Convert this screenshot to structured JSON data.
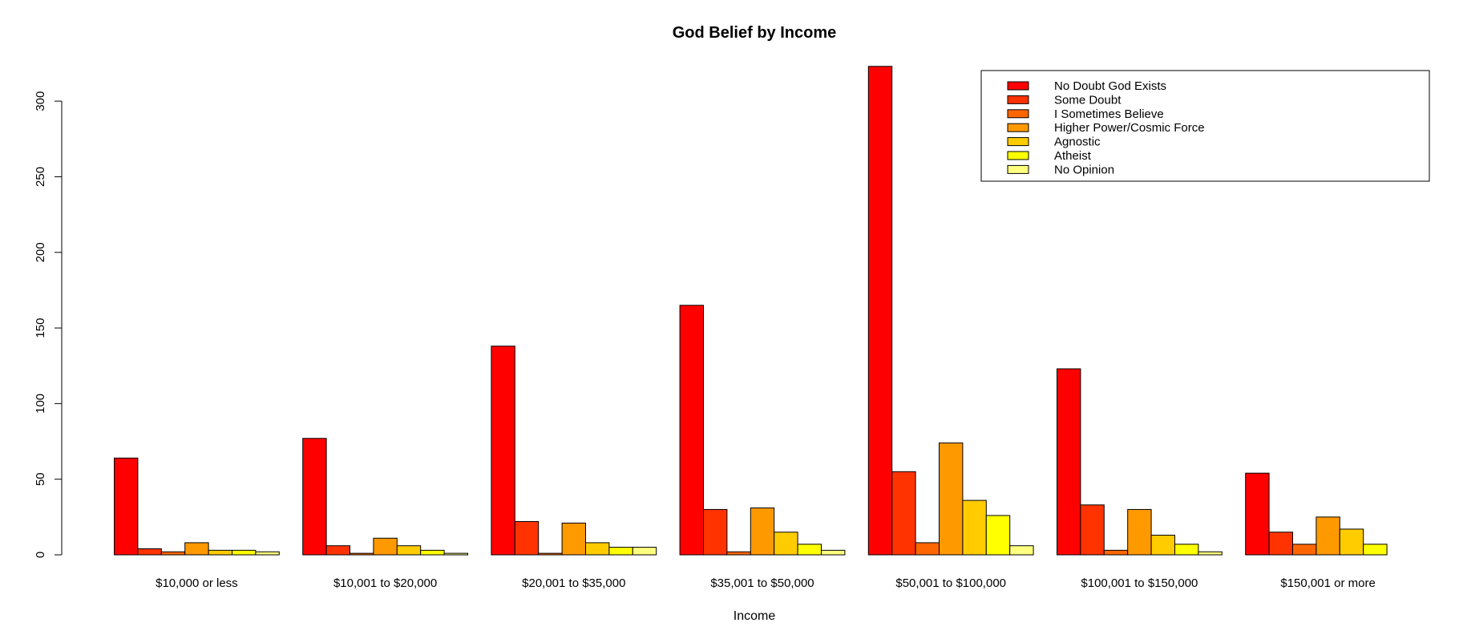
{
  "chart_data": {
    "type": "bar",
    "title": "God Belief by Income",
    "xlabel": "Income",
    "ylabel": "",
    "ylim": [
      0,
      325
    ],
    "yticks": [
      0,
      50,
      100,
      150,
      200,
      250,
      300
    ],
    "grid": false,
    "legend_position": "top-right",
    "categories": [
      "$10,000 or less",
      "$10,001 to $20,000",
      "$20,001 to $35,000",
      "$35,001 to $50,000",
      "$50,001 to $100,000",
      "$100,001 to $150,000",
      "$150,001 or more"
    ],
    "series": [
      {
        "name": "No Doubt God Exists",
        "color": "#FF0000",
        "values": [
          64,
          77,
          138,
          165,
          323,
          123,
          54
        ]
      },
      {
        "name": "Some Doubt",
        "color": "#FF3300",
        "values": [
          4,
          6,
          22,
          30,
          55,
          33,
          15
        ]
      },
      {
        "name": "I Sometimes Believe",
        "color": "#FF6600",
        "values": [
          2,
          1,
          1,
          2,
          8,
          3,
          7
        ]
      },
      {
        "name": "Higher Power/Cosmic Force",
        "color": "#FF9900",
        "values": [
          8,
          11,
          21,
          31,
          74,
          30,
          25
        ]
      },
      {
        "name": "Agnostic",
        "color": "#FFCC00",
        "values": [
          3,
          6,
          8,
          15,
          36,
          13,
          17
        ]
      },
      {
        "name": "Atheist",
        "color": "#FFFF00",
        "values": [
          3,
          3,
          5,
          7,
          26,
          7,
          7
        ]
      },
      {
        "name": "No Opinion",
        "color": "#FFFF80",
        "values": [
          2,
          1,
          5,
          3,
          6,
          2,
          0
        ]
      }
    ]
  }
}
